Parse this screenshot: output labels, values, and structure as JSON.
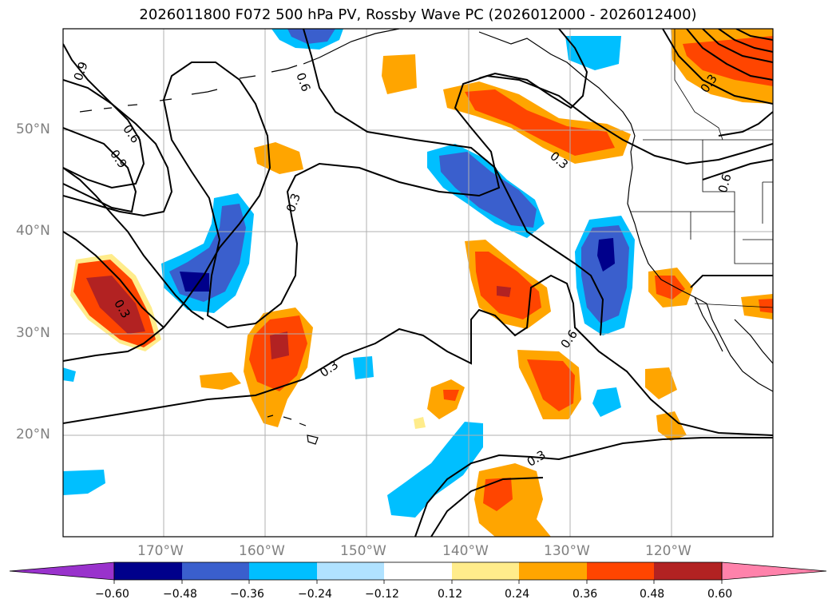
{
  "title": "2026011800 F072 500 hPa PV, Rossby Wave PC (2026012000 - 2026012400)",
  "colorbar": {
    "ticks": [
      "−0.60",
      "−0.48",
      "−0.36",
      "−0.24",
      "−0.12",
      "0.12",
      "0.24",
      "0.36",
      "0.48",
      "0.60"
    ],
    "colors": [
      "#9932cc",
      "#00008b",
      "#3a5fcd",
      "#00bfff",
      "#b0e2ff",
      "#ffffff",
      "#ffec8b",
      "#ffa500",
      "#ff4500",
      "#b22222",
      "#ff82ab"
    ]
  },
  "map": {
    "lat_labels": [
      "50°N",
      "40°N",
      "30°N",
      "20°N"
    ],
    "lon_labels": [
      "170°W",
      "160°W",
      "150°W",
      "140°W",
      "130°W",
      "120°W"
    ],
    "contour_labels": [
      "0.9",
      "0.6",
      "0.9",
      "0.6",
      "0.3",
      "0.3",
      "0.6",
      "0.3",
      "0.3",
      "0.3",
      "0.6",
      "0.3"
    ]
  },
  "colors": {
    "grid": "#b0b0b0",
    "contour": "#000000"
  }
}
